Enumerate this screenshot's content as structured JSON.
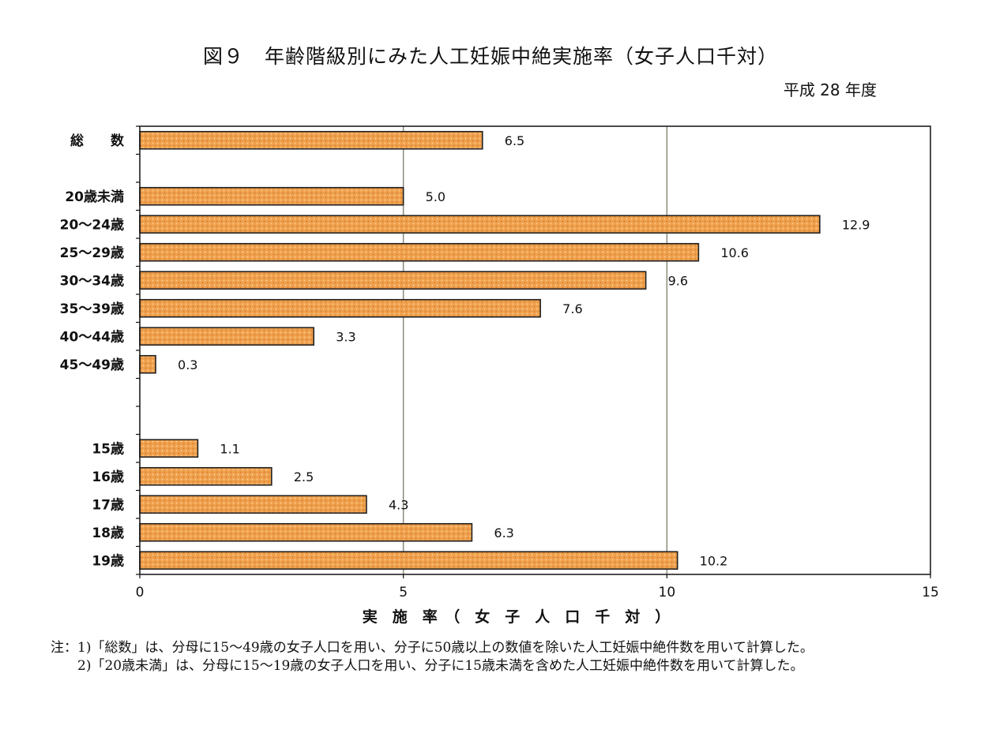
{
  "title": "図９　年齢階級別にみた人工妊娠中絶実施率（女子人口千対）",
  "subtitle": "平成 28 年度",
  "chart_data": {
    "type": "bar",
    "orientation": "horizontal",
    "categories": [
      "総　　数",
      "20歳未満",
      "20～24歳",
      "25～29歳",
      "30～34歳",
      "35～39歳",
      "40～44歳",
      "45～49歳",
      "15歳",
      "16歳",
      "17歳",
      "18歳",
      "19歳"
    ],
    "values": [
      6.5,
      5.0,
      12.9,
      10.6,
      9.6,
      7.6,
      3.3,
      0.3,
      1.1,
      2.5,
      4.3,
      6.3,
      10.2
    ],
    "value_labels": [
      "6.5",
      "5.0",
      "12.9",
      "10.6",
      "9.6",
      "7.6",
      "3.3",
      "0.3",
      "1.1",
      "2.5",
      "4.3",
      "6.3",
      "10.2"
    ],
    "xlim": [
      0,
      15
    ],
    "x_ticks": [
      "0",
      "5",
      "10",
      "15"
    ],
    "xlabel": "実　施　率　（　女　子　人　口　千　対　）",
    "ylabel": "",
    "grid": "vertical",
    "bar_color": "#f0a04c",
    "bar_edge_color": "#222222"
  },
  "notes": [
    {
      "prefix": "注：1)",
      "text": "「総数」は、分母に15～49歳の女子人口を用い、分子に50歳以上の数値を除いた人工妊娠中絶件数を用いて計算した。"
    },
    {
      "prefix": "　　2)",
      "text": "「20歳未満」は、分母に15～19歳の女子人口を用い、分子に15歳未満を含めた人工妊娠中絶件数を用いて計算した。"
    }
  ]
}
